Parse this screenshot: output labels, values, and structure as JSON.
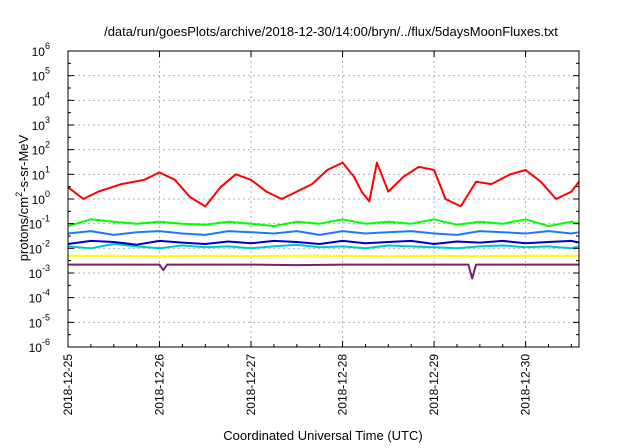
{
  "chart_data": {
    "type": "line",
    "title": "/data/run/goesPlots/archive/2018-12-30/14:00/bryn/../flux/5daysMoonFluxes.txt",
    "xlabel": "Coordinated Universal Time (UTC)",
    "ylabel": "protons/cm2-s-sr-MeV",
    "ylabel_parts": {
      "pre": "protons/cm",
      "sup": "2",
      "post": "-s-sr-MeV"
    },
    "y_scale": "log",
    "ylim": [
      1e-06,
      1000000.0
    ],
    "y_ticks": [
      {
        "exp": -6,
        "base": "10",
        "sup": "-6"
      },
      {
        "exp": -5,
        "base": "10",
        "sup": "-5"
      },
      {
        "exp": -4,
        "base": "10",
        "sup": "-4"
      },
      {
        "exp": -3,
        "base": "10",
        "sup": "-3"
      },
      {
        "exp": -2,
        "base": "10",
        "sup": "-2"
      },
      {
        "exp": -1,
        "base": "10",
        "sup": "-1"
      },
      {
        "exp": 0,
        "base": "10",
        "sup": "0"
      },
      {
        "exp": 1,
        "base": "10",
        "sup": "1"
      },
      {
        "exp": 2,
        "base": "10",
        "sup": "2"
      },
      {
        "exp": 3,
        "base": "10",
        "sup": "3"
      },
      {
        "exp": 4,
        "base": "10",
        "sup": "4"
      },
      {
        "exp": 5,
        "base": "10",
        "sup": "5"
      },
      {
        "exp": 6,
        "base": "10",
        "sup": "6"
      }
    ],
    "x_ticks": [
      "2018-12-25",
      "2018-12-26",
      "2018-12-27",
      "2018-12-28",
      "2018-12-29",
      "2018-12-30"
    ],
    "xlim": [
      "2018-12-25 00:00",
      "2018-12-30 14:00"
    ],
    "grid": true,
    "legend": "none",
    "series": [
      {
        "color": "#ff0000",
        "x": [
          "2018-12-25 00:00",
          "2018-12-25 04:00",
          "2018-12-25 08:00",
          "2018-12-25 14:00",
          "2018-12-25 20:00",
          "2018-12-26 00:00",
          "2018-12-26 04:00",
          "2018-12-26 08:00",
          "2018-12-26 12:00",
          "2018-12-26 16:00",
          "2018-12-26 20:00",
          "2018-12-27 00:00",
          "2018-12-27 04:00",
          "2018-12-27 08:00",
          "2018-12-27 12:00",
          "2018-12-27 16:00",
          "2018-12-27 20:00",
          "2018-12-28 00:00",
          "2018-12-28 03:00",
          "2018-12-28 05:00",
          "2018-12-28 07:00",
          "2018-12-28 09:00",
          "2018-12-28 12:00",
          "2018-12-28 16:00",
          "2018-12-28 20:00",
          "2018-12-29 00:00",
          "2018-12-29 03:00",
          "2018-12-29 07:00",
          "2018-12-29 11:00",
          "2018-12-29 15:00",
          "2018-12-29 20:00",
          "2018-12-30 00:00",
          "2018-12-30 04:00",
          "2018-12-30 08:00",
          "2018-12-30 12:00",
          "2018-12-30 14:00"
        ],
        "y": [
          3,
          1,
          2,
          4,
          6,
          12,
          6,
          1.2,
          0.5,
          3,
          10,
          6,
          2,
          1,
          2,
          4,
          15,
          30,
          8,
          2,
          0.8,
          30,
          2,
          8,
          20,
          15,
          1,
          0.5,
          5,
          4,
          10,
          15,
          5,
          1,
          2,
          5
        ]
      },
      {
        "color": "#00ff00",
        "x": [
          "2018-12-25 00:00",
          "2018-12-25 06:00",
          "2018-12-25 12:00",
          "2018-12-25 18:00",
          "2018-12-26 00:00",
          "2018-12-26 06:00",
          "2018-12-26 12:00",
          "2018-12-26 18:00",
          "2018-12-27 00:00",
          "2018-12-27 06:00",
          "2018-12-27 12:00",
          "2018-12-27 18:00",
          "2018-12-28 00:00",
          "2018-12-28 06:00",
          "2018-12-28 12:00",
          "2018-12-28 18:00",
          "2018-12-29 00:00",
          "2018-12-29 06:00",
          "2018-12-29 12:00",
          "2018-12-29 18:00",
          "2018-12-30 00:00",
          "2018-12-30 06:00",
          "2018-12-30 12:00",
          "2018-12-30 14:00"
        ],
        "y": [
          0.08,
          0.15,
          0.12,
          0.1,
          0.12,
          0.1,
          0.09,
          0.12,
          0.1,
          0.08,
          0.12,
          0.1,
          0.15,
          0.1,
          0.12,
          0.1,
          0.15,
          0.09,
          0.12,
          0.1,
          0.15,
          0.08,
          0.12,
          0.1
        ]
      },
      {
        "color": "#00c8c8",
        "x": [
          "2018-12-25 00:00",
          "2018-12-25 06:00",
          "2018-12-25 12:00",
          "2018-12-25 18:00",
          "2018-12-26 00:00",
          "2018-12-26 06:00",
          "2018-12-26 12:00",
          "2018-12-26 18:00",
          "2018-12-27 00:00",
          "2018-12-27 06:00",
          "2018-12-27 12:00",
          "2018-12-27 18:00",
          "2018-12-28 00:00",
          "2018-12-28 06:00",
          "2018-12-28 12:00",
          "2018-12-28 18:00",
          "2018-12-29 00:00",
          "2018-12-29 06:00",
          "2018-12-29 12:00",
          "2018-12-29 18:00",
          "2018-12-30 00:00",
          "2018-12-30 06:00",
          "2018-12-30 12:00",
          "2018-12-30 14:00"
        ],
        "y": [
          0.012,
          0.01,
          0.015,
          0.012,
          0.01,
          0.013,
          0.011,
          0.012,
          0.01,
          0.012,
          0.014,
          0.011,
          0.012,
          0.01,
          0.013,
          0.012,
          0.011,
          0.01,
          0.012,
          0.013,
          0.011,
          0.012,
          0.01,
          0.012
        ]
      },
      {
        "color": "#0000cc",
        "x": [
          "2018-12-25 00:00",
          "2018-12-25 06:00",
          "2018-12-25 12:00",
          "2018-12-25 18:00",
          "2018-12-26 00:00",
          "2018-12-26 06:00",
          "2018-12-26 12:00",
          "2018-12-26 18:00",
          "2018-12-27 00:00",
          "2018-12-27 06:00",
          "2018-12-27 12:00",
          "2018-12-27 18:00",
          "2018-12-28 00:00",
          "2018-12-28 06:00",
          "2018-12-28 12:00",
          "2018-12-28 18:00",
          "2018-12-29 00:00",
          "2018-12-29 06:00",
          "2018-12-29 12:00",
          "2018-12-29 18:00",
          "2018-12-30 00:00",
          "2018-12-30 06:00",
          "2018-12-30 12:00",
          "2018-12-30 14:00"
        ],
        "y": [
          0.015,
          0.02,
          0.018,
          0.014,
          0.02,
          0.017,
          0.015,
          0.019,
          0.016,
          0.02,
          0.018,
          0.015,
          0.02,
          0.016,
          0.018,
          0.02,
          0.015,
          0.019,
          0.017,
          0.02,
          0.016,
          0.018,
          0.02,
          0.017
        ]
      },
      {
        "color": "#1e78ff",
        "x": [
          "2018-12-25 00:00",
          "2018-12-25 06:00",
          "2018-12-25 12:00",
          "2018-12-25 18:00",
          "2018-12-26 00:00",
          "2018-12-26 06:00",
          "2018-12-26 12:00",
          "2018-12-26 18:00",
          "2018-12-27 00:00",
          "2018-12-27 06:00",
          "2018-12-27 12:00",
          "2018-12-27 18:00",
          "2018-12-28 00:00",
          "2018-12-28 06:00",
          "2018-12-28 12:00",
          "2018-12-28 18:00",
          "2018-12-29 00:00",
          "2018-12-29 06:00",
          "2018-12-29 12:00",
          "2018-12-29 18:00",
          "2018-12-30 00:00",
          "2018-12-30 06:00",
          "2018-12-30 12:00",
          "2018-12-30 14:00"
        ],
        "y": [
          0.04,
          0.05,
          0.035,
          0.045,
          0.05,
          0.04,
          0.035,
          0.05,
          0.045,
          0.04,
          0.05,
          0.035,
          0.05,
          0.04,
          0.045,
          0.05,
          0.04,
          0.035,
          0.05,
          0.045,
          0.04,
          0.05,
          0.04,
          0.045
        ]
      },
      {
        "color": "#ffff00",
        "x": [
          "2018-12-25 00:00",
          "2018-12-25 12:00",
          "2018-12-26 00:00",
          "2018-12-26 12:00",
          "2018-12-27 00:00",
          "2018-12-27 12:00",
          "2018-12-28 00:00",
          "2018-12-28 12:00",
          "2018-12-29 00:00",
          "2018-12-29 12:00",
          "2018-12-30 00:00",
          "2018-12-30 14:00"
        ],
        "y": [
          0.005,
          0.005,
          0.0048,
          0.005,
          0.0049,
          0.005,
          0.005,
          0.0048,
          0.005,
          0.0049,
          0.005,
          0.005
        ]
      },
      {
        "color": "#7b1f6e",
        "x": [
          "2018-12-25 00:00",
          "2018-12-25 12:00",
          "2018-12-26 00:00",
          "2018-12-26 01:00",
          "2018-12-26 02:00",
          "2018-12-26 12:00",
          "2018-12-27 00:00",
          "2018-12-27 12:00",
          "2018-12-28 00:00",
          "2018-12-28 12:00",
          "2018-12-29 00:00",
          "2018-12-29 09:00",
          "2018-12-29 10:00",
          "2018-12-29 11:00",
          "2018-12-30 00:00",
          "2018-12-30 14:00"
        ],
        "y": [
          0.0022,
          0.0022,
          0.0022,
          0.0013,
          0.0022,
          0.0022,
          0.0022,
          0.0021,
          0.0022,
          0.0022,
          0.0022,
          0.0022,
          0.0006,
          0.0022,
          0.0022,
          0.0022
        ]
      }
    ]
  }
}
